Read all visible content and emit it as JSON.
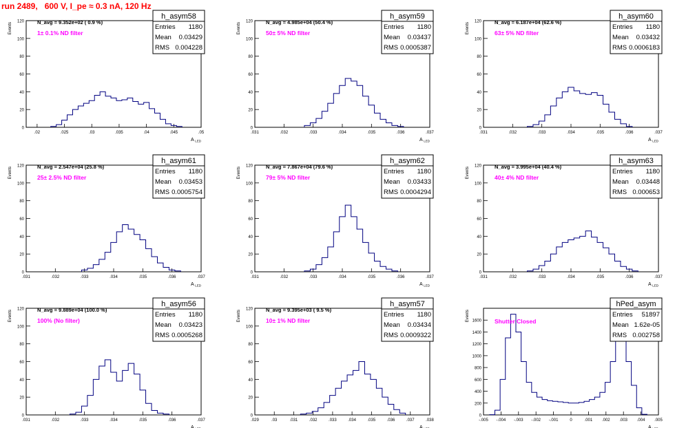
{
  "page_title": "run 2489,   600 V, I_pe ≈ 0.3 nA, 120 Hz",
  "colors": {
    "frame": "#000000",
    "hist_line": "#000080",
    "label": "#ff00ff",
    "title": "#ff0000"
  },
  "stat_labels": {
    "entries": "Entries",
    "mean": "Mean",
    "rms": "RMS"
  },
  "chart_data": [
    {
      "type": "histogram",
      "name": "h_asym58",
      "ylabel": "Events",
      "xlabel": "A",
      "xlabel_sub": "LED",
      "ylim": [
        0,
        120
      ],
      "xlim": [
        0.018,
        0.05
      ],
      "xticks": [
        0.02,
        0.025,
        0.03,
        0.035,
        0.04,
        0.045,
        0.05
      ],
      "yticks": [
        0,
        20,
        40,
        60,
        80,
        100,
        120
      ],
      "navg": "N_avg = 9.352e+02 ( 0.9 %)",
      "filter": "1± 0.1% ND filter",
      "stats": {
        "entries": "1180",
        "mean": "0.03429",
        "rms": "0.004228"
      },
      "x": [
        0.023,
        0.024,
        0.025,
        0.026,
        0.027,
        0.028,
        0.029,
        0.03,
        0.031,
        0.032,
        0.033,
        0.034,
        0.035,
        0.036,
        0.037,
        0.038,
        0.039,
        0.04,
        0.041,
        0.042,
        0.043,
        0.044,
        0.045,
        0.046
      ],
      "values": [
        1,
        3,
        8,
        14,
        20,
        24,
        27,
        30,
        36,
        40,
        35,
        33,
        30,
        31,
        33,
        29,
        26,
        28,
        21,
        16,
        9,
        4,
        2,
        1
      ]
    },
    {
      "type": "histogram",
      "name": "h_asym59",
      "ylabel": "Events",
      "xlabel": "A",
      "xlabel_sub": "LED",
      "ylim": [
        0,
        120
      ],
      "xlim": [
        0.031,
        0.037
      ],
      "xticks": [
        0.031,
        0.032,
        0.033,
        0.034,
        0.035,
        0.036,
        0.037
      ],
      "yticks": [
        0,
        20,
        40,
        60,
        80,
        100,
        120
      ],
      "navg": "N_avg = 4.985e+04 (50.4 %)",
      "filter": "50± 5% ND filter",
      "stats": {
        "entries": "1180",
        "mean": "0.03437",
        "rms": "0.0005387"
      },
      "x": [
        0.0328,
        0.033,
        0.0332,
        0.0334,
        0.0336,
        0.0338,
        0.034,
        0.0342,
        0.0344,
        0.0346,
        0.0348,
        0.035,
        0.0352,
        0.0354,
        0.0356,
        0.0358,
        0.036
      ],
      "values": [
        2,
        5,
        10,
        18,
        27,
        38,
        47,
        55,
        52,
        47,
        35,
        25,
        16,
        9,
        5,
        2,
        1
      ]
    },
    {
      "type": "histogram",
      "name": "h_asym60",
      "ylabel": "Events",
      "xlabel": "A",
      "xlabel_sub": "LED",
      "ylim": [
        0,
        120
      ],
      "xlim": [
        0.031,
        0.037
      ],
      "xticks": [
        0.031,
        0.032,
        0.033,
        0.034,
        0.035,
        0.036,
        0.037
      ],
      "yticks": [
        0,
        20,
        40,
        60,
        80,
        100,
        120
      ],
      "navg": "N_avg = 6.187e+04 (62.6 %)",
      "filter": "63± 5% ND filter",
      "stats": {
        "entries": "1180",
        "mean": "0.03432",
        "rms": "0.0006183"
      },
      "x": [
        0.0326,
        0.0328,
        0.033,
        0.0332,
        0.0334,
        0.0336,
        0.0338,
        0.034,
        0.0342,
        0.0344,
        0.0346,
        0.0348,
        0.035,
        0.0352,
        0.0354,
        0.0356,
        0.0358,
        0.036
      ],
      "values": [
        1,
        3,
        7,
        14,
        24,
        33,
        40,
        45,
        41,
        38,
        37,
        39,
        36,
        26,
        17,
        9,
        4,
        1
      ]
    },
    {
      "type": "histogram",
      "name": "h_asym61",
      "ylabel": "Events",
      "xlabel": "A",
      "xlabel_sub": "LED",
      "ylim": [
        0,
        120
      ],
      "xlim": [
        0.031,
        0.037
      ],
      "xticks": [
        0.031,
        0.032,
        0.033,
        0.034,
        0.035,
        0.036,
        0.037
      ],
      "yticks": [
        0,
        20,
        40,
        60,
        80,
        100,
        120
      ],
      "navg": "N_avg = 2.547e+04 (25.8 %)",
      "filter": "25± 2.5% ND filter",
      "stats": {
        "entries": "1180",
        "mean": "0.03453",
        "rms": "0.0005754"
      },
      "x": [
        0.033,
        0.0332,
        0.0334,
        0.0336,
        0.0338,
        0.034,
        0.0342,
        0.0344,
        0.0346,
        0.0348,
        0.035,
        0.0352,
        0.0354,
        0.0356,
        0.0358,
        0.036,
        0.0362
      ],
      "values": [
        2,
        4,
        8,
        14,
        22,
        33,
        45,
        53,
        48,
        42,
        36,
        26,
        17,
        10,
        5,
        2,
        1
      ]
    },
    {
      "type": "histogram",
      "name": "h_asym62",
      "ylabel": "Events",
      "xlabel": "A",
      "xlabel_sub": "LED",
      "ylim": [
        0,
        120
      ],
      "xlim": [
        0.031,
        0.037
      ],
      "xticks": [
        0.031,
        0.032,
        0.033,
        0.034,
        0.035,
        0.036,
        0.037
      ],
      "yticks": [
        0,
        20,
        40,
        60,
        80,
        100,
        120
      ],
      "navg": "N_avg = 7.867e+04 (79.6 %)",
      "filter": "79± 5% ND filter",
      "stats": {
        "entries": "1180",
        "mean": "0.03433",
        "rms": "0.0004294"
      },
      "x": [
        0.0328,
        0.033,
        0.0332,
        0.0334,
        0.0336,
        0.0338,
        0.034,
        0.0342,
        0.0344,
        0.0346,
        0.0348,
        0.035,
        0.0352,
        0.0354,
        0.0356,
        0.0358
      ],
      "values": [
        1,
        3,
        8,
        16,
        28,
        45,
        62,
        75,
        62,
        48,
        33,
        21,
        12,
        6,
        3,
        1
      ]
    },
    {
      "type": "histogram",
      "name": "h_asym63",
      "ylabel": "Events",
      "xlabel": "A",
      "xlabel_sub": "LED",
      "ylim": [
        0,
        120
      ],
      "xlim": [
        0.031,
        0.037
      ],
      "xticks": [
        0.031,
        0.032,
        0.033,
        0.034,
        0.035,
        0.036,
        0.037
      ],
      "yticks": [
        0,
        20,
        40,
        60,
        80,
        100,
        120
      ],
      "navg": "N_avg = 3.995e+04 (40.4 %)",
      "filter": "40± 4% ND filter",
      "stats": {
        "entries": "1180",
        "mean": "0.03448",
        "rms": "0.000653"
      },
      "x": [
        0.0326,
        0.0328,
        0.033,
        0.0332,
        0.0334,
        0.0336,
        0.0338,
        0.034,
        0.0342,
        0.0344,
        0.0346,
        0.0348,
        0.035,
        0.0352,
        0.0354,
        0.0356,
        0.0358,
        0.036,
        0.0362
      ],
      "values": [
        1,
        3,
        7,
        12,
        20,
        28,
        33,
        36,
        38,
        40,
        46,
        39,
        33,
        27,
        20,
        12,
        6,
        3,
        1
      ]
    },
    {
      "type": "histogram",
      "name": "h_asym56",
      "ylabel": "Events",
      "xlabel": "A",
      "xlabel_sub": "LED",
      "ylim": [
        0,
        120
      ],
      "xlim": [
        0.031,
        0.037
      ],
      "xticks": [
        0.031,
        0.032,
        0.033,
        0.034,
        0.035,
        0.036,
        0.037
      ],
      "yticks": [
        0,
        20,
        40,
        60,
        80,
        100,
        120
      ],
      "navg": "N_avg = 9.889e+04 (100.0 %)",
      "filter": "100% (No filter)",
      "stats": {
        "entries": "1180",
        "mean": "0.03423",
        "rms": "0.0005268"
      },
      "x": [
        0.0326,
        0.0328,
        0.033,
        0.0332,
        0.0334,
        0.0336,
        0.0338,
        0.034,
        0.0342,
        0.0344,
        0.0346,
        0.0348,
        0.035,
        0.0352,
        0.0354,
        0.0356,
        0.0358
      ],
      "values": [
        1,
        3,
        10,
        22,
        40,
        55,
        62,
        48,
        38,
        50,
        58,
        46,
        28,
        13,
        5,
        2,
        1
      ]
    },
    {
      "type": "histogram",
      "name": "h_asym57",
      "ylabel": "Events",
      "xlabel": "A",
      "xlabel_sub": "LED",
      "ylim": [
        0,
        120
      ],
      "xlim": [
        0.029,
        0.038
      ],
      "xticks": [
        0.029,
        0.03,
        0.031,
        0.032,
        0.033,
        0.034,
        0.035,
        0.036,
        0.037,
        0.038
      ],
      "yticks": [
        0,
        20,
        40,
        60,
        80,
        100,
        120
      ],
      "navg": "N_avg = 9.395e+03 ( 9.5 %)",
      "filter": "10± 1% ND filter",
      "stats": {
        "entries": "1180",
        "mean": "0.03434",
        "rms": "0.0009322"
      },
      "x": [
        0.0315,
        0.0318,
        0.0321,
        0.0324,
        0.0327,
        0.033,
        0.0333,
        0.0336,
        0.0339,
        0.0342,
        0.0345,
        0.0348,
        0.0351,
        0.0354,
        0.0357,
        0.036,
        0.0363,
        0.0366
      ],
      "values": [
        1,
        2,
        4,
        8,
        14,
        22,
        30,
        38,
        45,
        50,
        60,
        46,
        40,
        30,
        20,
        12,
        6,
        2
      ]
    },
    {
      "type": "histogram",
      "name": "hPed_asym",
      "ylabel": "Events",
      "xlabel": "A",
      "xlabel_sub": "LED",
      "ylim": [
        0,
        1800
      ],
      "xlim": [
        -0.005,
        0.005
      ],
      "xticks": [
        -0.005,
        -0.004,
        -0.003,
        -0.002,
        -0.001,
        0,
        0.001,
        0.002,
        0.003,
        0.004,
        0.005
      ],
      "yticks": [
        0,
        200,
        400,
        600,
        800,
        1000,
        1200,
        1400,
        1600
      ],
      "navg": "",
      "filter": "Shutter Closed",
      "stats": {
        "entries": "51897",
        "mean": "1.62e-05",
        "rms": "0.002758"
      },
      "x": [
        -0.0045,
        -0.0042,
        -0.0039,
        -0.0036,
        -0.0033,
        -0.003,
        -0.0027,
        -0.0024,
        -0.0021,
        -0.0018,
        -0.0015,
        -0.0012,
        -0.0009,
        -0.0006,
        -0.0003,
        0.0,
        0.0003,
        0.0006,
        0.0009,
        0.0012,
        0.0015,
        0.0018,
        0.0021,
        0.0024,
        0.0027,
        0.003,
        0.0033,
        0.0036,
        0.0039,
        0.0042
      ],
      "values": [
        5,
        80,
        600,
        1300,
        1700,
        1400,
        900,
        550,
        380,
        300,
        260,
        240,
        230,
        220,
        210,
        200,
        200,
        210,
        230,
        260,
        300,
        380,
        550,
        900,
        1300,
        1400,
        900,
        500,
        120,
        10
      ]
    }
  ]
}
